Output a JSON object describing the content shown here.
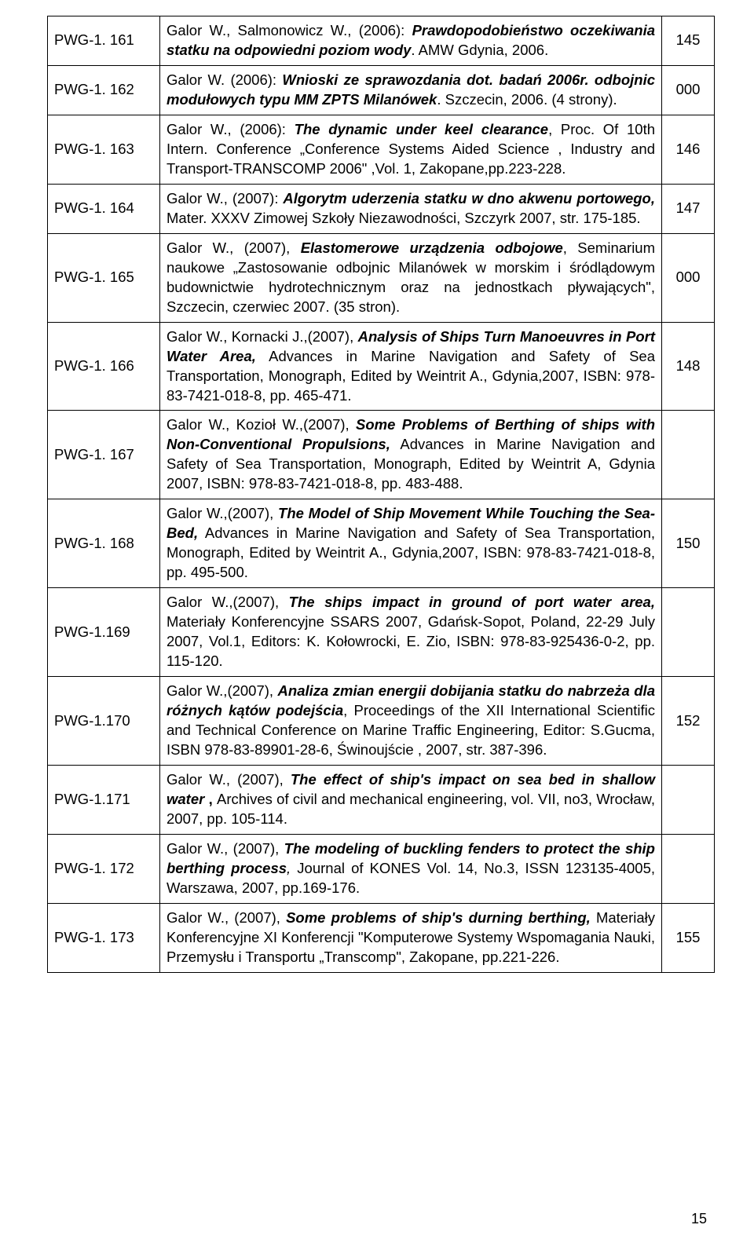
{
  "page_number": "15",
  "rows": [
    {
      "id": "PWG-1. 161",
      "desc_parts": [
        {
          "text": "Galor W., Salmonowicz W., (2006): ",
          "cls": ""
        },
        {
          "text": "Prawdopodobieństwo oczekiwania statku na odpowiedni poziom wody",
          "cls": "bi"
        },
        {
          "text": ". AMW Gdynia, 2006.",
          "cls": ""
        }
      ],
      "num": "145"
    },
    {
      "id": "PWG-1. 162",
      "desc_parts": [
        {
          "text": "Galor W. (2006): ",
          "cls": ""
        },
        {
          "text": "Wnioski ze sprawozdania dot. badań 2006r. odbojnic modułowych typu MM ZPTS Milanówek",
          "cls": "bi"
        },
        {
          "text": ". Szczecin, 2006. (4 strony).",
          "cls": ""
        }
      ],
      "num": "000"
    },
    {
      "id": "PWG-1. 163",
      "desc_parts": [
        {
          "text": "Galor W., (2006): ",
          "cls": ""
        },
        {
          "text": "The dynamic under keel clearance",
          "cls": "bi"
        },
        {
          "text": ", Proc. Of 10th Intern. Conference „Conference Systems Aided Science , Industry and Transport-TRANSCOMP 2006\" ,Vol. 1, Zakopane,pp.223-228.",
          "cls": ""
        }
      ],
      "num": "146"
    },
    {
      "id": "PWG-1. 164",
      "desc_parts": [
        {
          "text": "Galor W., (2007):  ",
          "cls": ""
        },
        {
          "text": "Algorytm uderzenia statku w dno akwenu portowego,",
          "cls": "bi"
        },
        {
          "text": " Mater. XXXV Zimowej Szkoły Niezawodności, Szczyrk 2007, str. 175-185.",
          "cls": ""
        }
      ],
      "num": "147"
    },
    {
      "id": "PWG-1. 165",
      "desc_parts": [
        {
          "text": "Galor W., (2007), ",
          "cls": ""
        },
        {
          "text": "Elastomerowe urządzenia odbojowe",
          "cls": "bi"
        },
        {
          "text": ", Seminarium naukowe „Zastosowanie odbojnic Milanówek w morskim i śródlądowym budownictwie hydrotechnicznym oraz na jednostkach pływających\", Szczecin, czerwiec 2007. (35 stron).",
          "cls": ""
        }
      ],
      "num": "000"
    },
    {
      "id": "PWG-1. 166",
      "desc_parts": [
        {
          "text": "Galor W., Kornacki J.,(2007), ",
          "cls": ""
        },
        {
          "text": "Analysis of Ships Turn Manoeuvres in Port Water Area,",
          "cls": "bi"
        },
        {
          "text": " Advances in Marine Navigation and Safety of Sea Transportation, Monograph, Edited by Weintrit A., Gdynia,2007, ISBN: 978-83-7421-018-8, pp. 465-471.",
          "cls": ""
        }
      ],
      "num": "148"
    },
    {
      "id": "PWG-1. 167",
      "desc_parts": [
        {
          "text": "Galor W., Kozioł W.,(2007), ",
          "cls": ""
        },
        {
          "text": "Some Problems of Berthing of ships with Non-Conventional Propulsions,",
          "cls": "bi"
        },
        {
          "text": " Advances in Marine Navigation and Safety of Sea Transportation, Monograph, Edited by Weintrit A, Gdynia 2007, ISBN: 978-83-7421-018-8, pp. 483-488.",
          "cls": ""
        }
      ],
      "num": ""
    },
    {
      "id": "PWG-1. 168",
      "desc_parts": [
        {
          "text": "Galor W.,(2007), ",
          "cls": ""
        },
        {
          "text": "The Model of Ship Movement While Touching the Sea-Bed,",
          "cls": "bi"
        },
        {
          "text": " Advances in Marine Navigation and Safety of Sea Transportation, Monograph, Edited by Weintrit A., Gdynia,2007, ISBN: 978-83-7421-018-8, pp. 495-500.",
          "cls": ""
        }
      ],
      "num": "150"
    },
    {
      "id": "PWG-1.169",
      "desc_parts": [
        {
          "text": "Galor W.,(2007), ",
          "cls": ""
        },
        {
          "text": "The ships impact in ground of port water area,",
          "cls": "bi"
        },
        {
          "text": " Materiały Konferencyjne SSARS 2007, Gdańsk-Sopot, Poland, 22-29 July 2007, Vol.1, Editors: K. Kołowrocki, E. Zio, ISBN: 978-83-925436-0-2, pp. 115-120.",
          "cls": ""
        }
      ],
      "num": ""
    },
    {
      "id": "PWG-1.170",
      "desc_parts": [
        {
          "text": "Galor W.,(2007), ",
          "cls": ""
        },
        {
          "text": "Analiza zmian energii dobijania statku do nabrzeża dla różnych kątów podejścia",
          "cls": "bi"
        },
        {
          "text": ", Proceedings of the XII International Scientific and Technical Conference on Marine Traffic Engineering, Editor: S.Gucma, ISBN 978-83-89901-28-6, Świnoujście , 2007, str. 387-396.",
          "cls": ""
        }
      ],
      "num": "152"
    },
    {
      "id": "PWG-1.171",
      "desc_parts": [
        {
          "text": "Galor W., (2007), ",
          "cls": ""
        },
        {
          "text": "The effect of ship's impact on sea bed in shallow water",
          "cls": "bi"
        },
        {
          "text": " , ",
          "cls": "b"
        },
        {
          "text": "Archives of civil and mechanical engineering, vol. VII, no3, Wrocław, 2007, pp. 105-114.",
          "cls": ""
        }
      ],
      "num": ""
    },
    {
      "id": "PWG-1. 172",
      "desc_parts": [
        {
          "text": "Galor W., (2007), ",
          "cls": ""
        },
        {
          "text": "The modeling of buckling fenders to protect the ship berthing process",
          "cls": "bi"
        },
        {
          "text": ", ",
          "cls": "i"
        },
        {
          "text": "Journal of KONES Vol. 14, No.3, ISSN 123135-4005, Warszawa, 2007, pp.169-176.",
          "cls": ""
        }
      ],
      "num": ""
    },
    {
      "id": "PWG-1. 173",
      "desc_parts": [
        {
          "text": "Galor W., (2007), ",
          "cls": ""
        },
        {
          "text": "Some problems of ship's durning berthing,",
          "cls": "bi"
        },
        {
          "text": " Materiały Konferencyjne XI Konferencji \"Komputerowe Systemy Wspomagania Nauki, Przemysłu i Transportu „Transcomp\", Zakopane, pp.221-226.",
          "cls": ""
        }
      ],
      "num": "155"
    }
  ]
}
